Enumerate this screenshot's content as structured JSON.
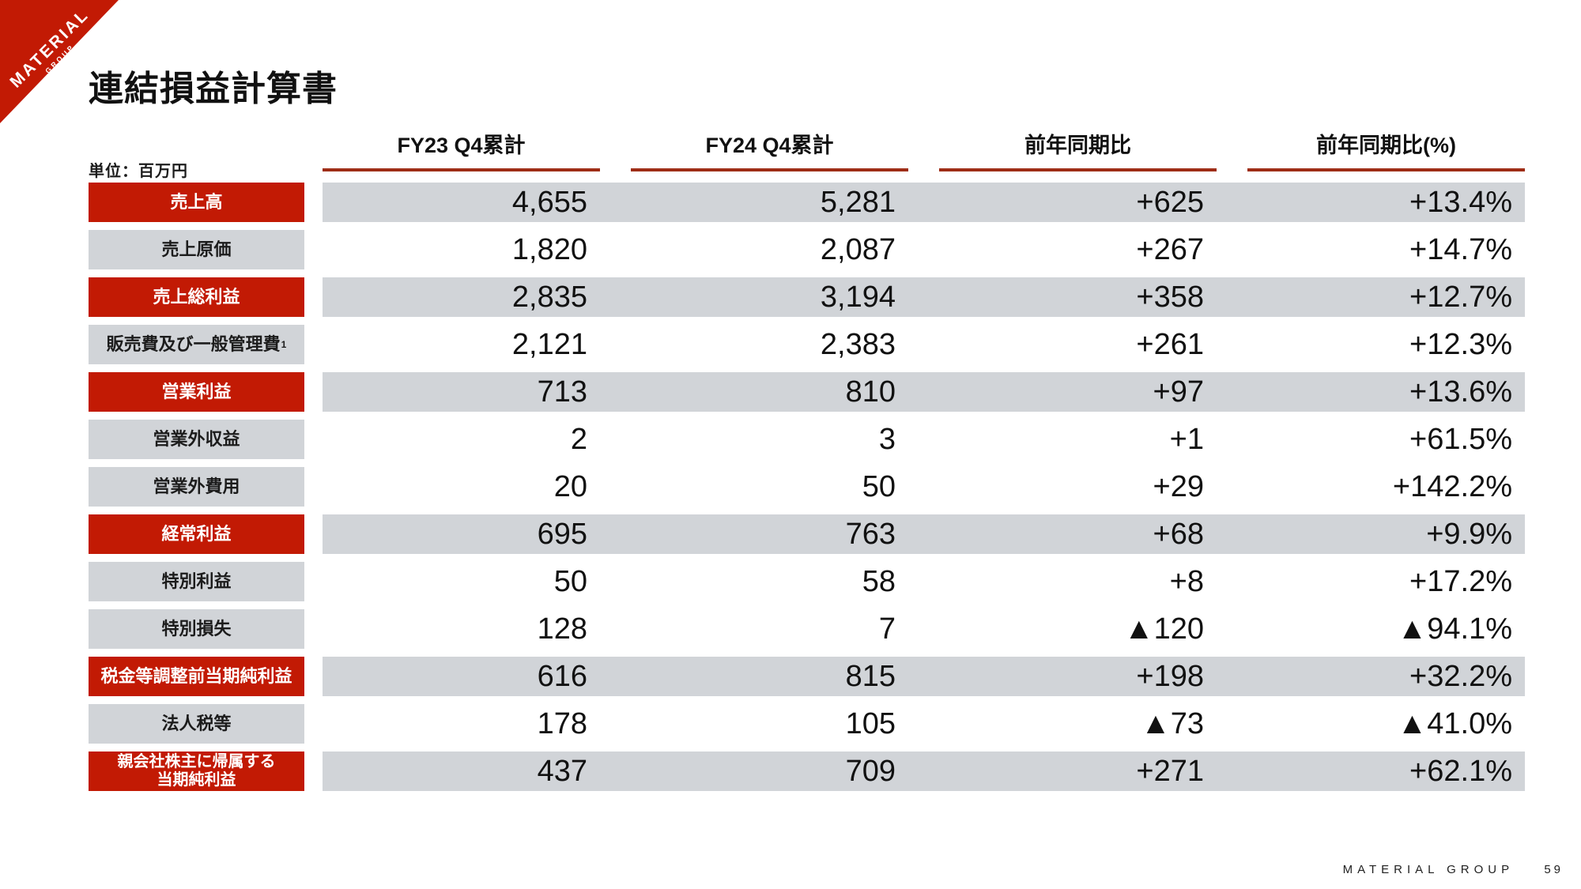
{
  "brand": {
    "logo_line1": "MATERIAL",
    "logo_line2": "GROUP"
  },
  "page": {
    "title": "連結損益計算書",
    "unit_note": "単位：百万円"
  },
  "table": {
    "columns": [
      "FY23 Q4累計",
      "FY24 Q4累計",
      "前年同期比",
      "前年同期比(%)"
    ],
    "rows": [
      {
        "label": "売上高",
        "emphasis": true,
        "values": [
          "4,655",
          "5,281",
          "+625",
          "+13.4%"
        ]
      },
      {
        "label": "売上原価",
        "emphasis": false,
        "values": [
          "1,820",
          "2,087",
          "+267",
          "+14.7%"
        ]
      },
      {
        "label": "売上総利益",
        "emphasis": true,
        "values": [
          "2,835",
          "3,194",
          "+358",
          "+12.7%"
        ]
      },
      {
        "label": "販売費及び一般管理費",
        "label_superscript": "1",
        "emphasis": false,
        "values": [
          "2,121",
          "2,383",
          "+261",
          "+12.3%"
        ]
      },
      {
        "label": "営業利益",
        "emphasis": true,
        "values": [
          "713",
          "810",
          "+97",
          "+13.6%"
        ]
      },
      {
        "label": "営業外収益",
        "emphasis": false,
        "values": [
          "2",
          "3",
          "+1",
          "+61.5%"
        ]
      },
      {
        "label": "営業外費用",
        "emphasis": false,
        "values": [
          "20",
          "50",
          "+29",
          "+142.2%"
        ]
      },
      {
        "label": "経常利益",
        "emphasis": true,
        "values": [
          "695",
          "763",
          "+68",
          "+9.9%"
        ]
      },
      {
        "label": "特別利益",
        "emphasis": false,
        "values": [
          "50",
          "58",
          "+8",
          "+17.2%"
        ]
      },
      {
        "label": "特別損失",
        "emphasis": false,
        "values": [
          "128",
          "7",
          "▲120",
          "▲94.1%"
        ]
      },
      {
        "label": "税金等調整前当期純利益",
        "emphasis": true,
        "values": [
          "616",
          "815",
          "+198",
          "+32.2%"
        ]
      },
      {
        "label": "法人税等",
        "emphasis": false,
        "values": [
          "178",
          "105",
          "▲73",
          "▲41.0%"
        ]
      },
      {
        "label": "親会社株主に帰属する\n当期純利益",
        "emphasis": true,
        "values": [
          "437",
          "709",
          "+271",
          "+62.1%"
        ]
      }
    ]
  },
  "footer": {
    "brand": "MATERIAL GROUP",
    "page_number": "59"
  },
  "colors": {
    "accent_red": "#c21a04",
    "underline_red": "#9e2d16",
    "stripe_gray": "#d1d4d8"
  }
}
